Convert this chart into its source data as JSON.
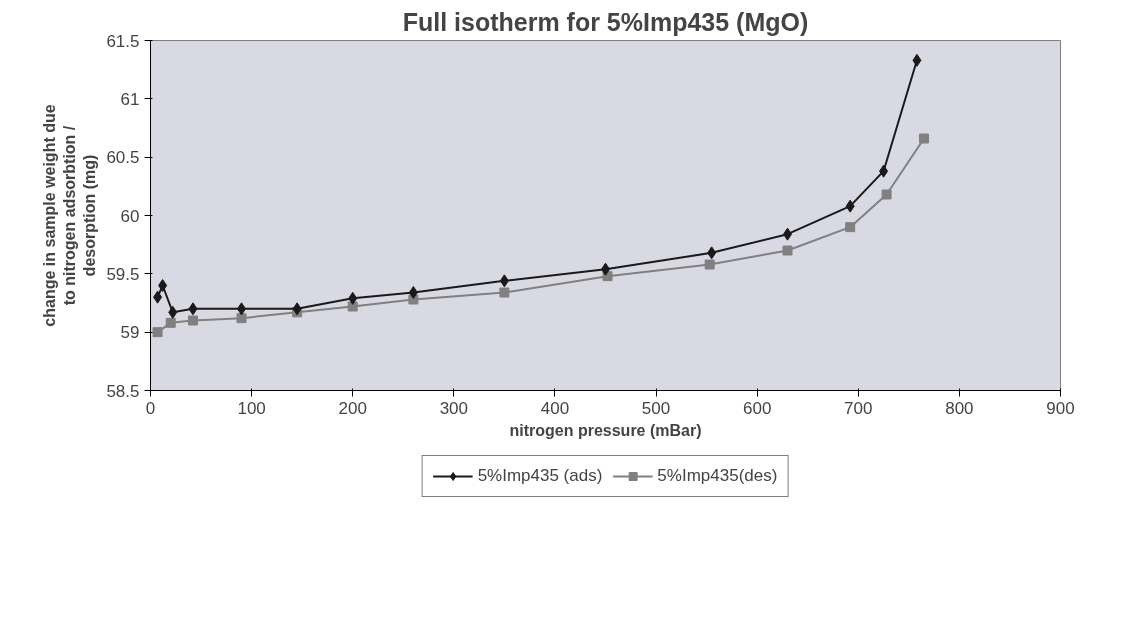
{
  "chart_data": {
    "type": "line",
    "title": "Full isotherm for 5%Imp435 (MgO)",
    "xlabel": "nitrogen pressure (mBar)",
    "ylabel": "change in sample weight due to nitrogen adsorbtion / desorption (mg)",
    "xlim": [
      0,
      900
    ],
    "xticks": [
      0,
      100,
      200,
      300,
      400,
      500,
      600,
      700,
      800,
      900
    ],
    "ylim": [
      58.5,
      61.5
    ],
    "yticks": [
      58.5,
      59,
      59.5,
      60,
      60.5,
      61,
      61.5
    ],
    "grid": false,
    "legend": "bottom",
    "series": [
      {
        "name": "5%Imp435 (ads)",
        "color": "#1a1a1a",
        "marker": "diamond",
        "x": [
          7,
          12,
          22,
          42,
          90,
          145,
          200,
          260,
          350,
          450,
          555,
          630,
          692,
          725,
          758
        ],
        "values": [
          59.3,
          59.4,
          59.17,
          59.2,
          59.2,
          59.2,
          59.29,
          59.34,
          59.44,
          59.54,
          59.68,
          59.84,
          60.08,
          60.38,
          61.33
        ]
      },
      {
        "name": "5%Imp435(des)",
        "color": "#808080",
        "marker": "square",
        "x": [
          7,
          20,
          42,
          90,
          145,
          200,
          260,
          350,
          452,
          553,
          630,
          692,
          728,
          765
        ],
        "values": [
          59.0,
          59.08,
          59.1,
          59.12,
          59.17,
          59.22,
          59.28,
          59.34,
          59.48,
          59.58,
          59.7,
          59.9,
          60.18,
          60.66
        ]
      }
    ]
  }
}
